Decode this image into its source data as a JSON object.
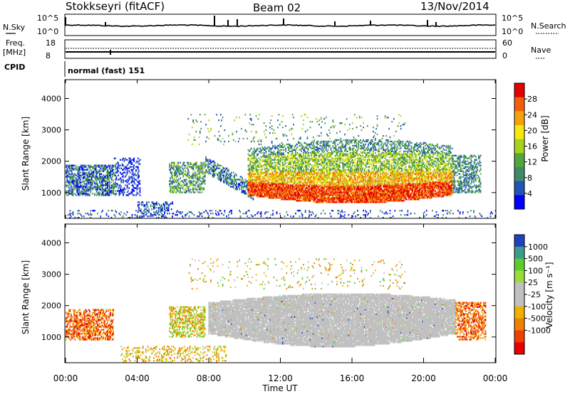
{
  "header": {
    "station": "Stokkseyri (fitACF)",
    "beam": "Beam 02",
    "date": "13/Nov/2014"
  },
  "noise_panel": {
    "left_label": "N.Sky",
    "right_label": "N.Search",
    "ticks": [
      "10^5",
      "10^0"
    ]
  },
  "freq_panel": {
    "left_label_1": "Freq.",
    "left_label_2": "[MHz]",
    "left_ticks": [
      "18",
      "8"
    ],
    "right_label": "Nave",
    "right_ticks": [
      "60",
      "0"
    ]
  },
  "cpid": {
    "label": "CPID",
    "value": "normal (fast) 151"
  },
  "colors": {
    "power_scale": [
      "#0000ff",
      "#2155b5",
      "#3f8a6b",
      "#53a63a",
      "#a8d21b",
      "#f5e80c",
      "#f5a00c",
      "#f25f0c",
      "#e60000"
    ],
    "velocity_scale": [
      "#2040c0",
      "#3c9c8c",
      "#5ccc2c",
      "#9adc3c",
      "#c0c0c0",
      "#c0c0c0",
      "#f0b000",
      "#f08000",
      "#f04000",
      "#e60000"
    ],
    "ground_scatter": "#c0c0c0"
  },
  "chart_data": [
    {
      "type": "heatmap",
      "panel": "power",
      "ylabel": "Slant Range [km]",
      "yticks": [
        1000,
        2000,
        3000,
        4000
      ],
      "ylim": [
        180,
        4600
      ],
      "xlim_hours": [
        0,
        24
      ],
      "colorbar": {
        "label": "Power [dB]",
        "ticks": [
          "4",
          "8",
          "12",
          "16",
          "20",
          "24",
          "28"
        ],
        "range": [
          0,
          32
        ]
      }
    },
    {
      "type": "heatmap",
      "panel": "velocity",
      "ylabel": "Slant Range [km]",
      "yticks": [
        1000,
        2000,
        3000,
        4000
      ],
      "ylim": [
        180,
        4600
      ],
      "xlim_hours": [
        0,
        24
      ],
      "xlabel": "Time UT",
      "xticks": [
        "00:00",
        "04:00",
        "08:00",
        "12:00",
        "16:00",
        "20:00",
        "00:00"
      ],
      "colorbar": {
        "label": "Velocity [m s⁻¹]",
        "ticks": [
          "1000",
          "500",
          "100",
          "25",
          "-25",
          "-100",
          "-500",
          "-1000"
        ]
      }
    }
  ]
}
